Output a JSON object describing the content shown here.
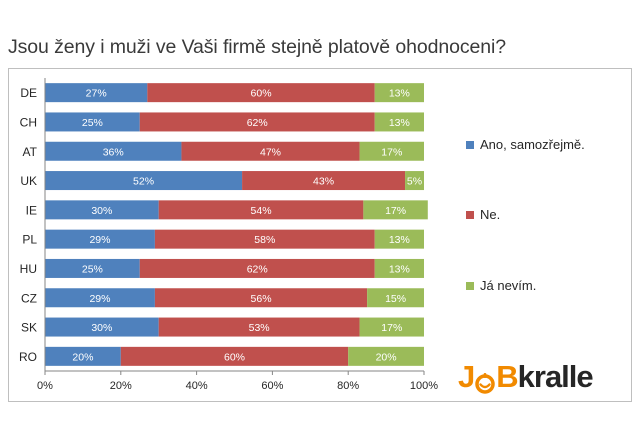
{
  "title": "Jsou ženy i muži ve Vaši firmě stejně platově ohodnoceni?",
  "logo": {
    "part1": "J",
    "part2": "B",
    "part3": "kralle",
    "o_icon": "smile-face-icon"
  },
  "colors": {
    "yes": "#4f81bd",
    "no": "#c0504d",
    "dontknow": "#9bbb59",
    "axis": "#868686"
  },
  "chart_data": {
    "type": "bar",
    "orientation": "horizontal",
    "stacked": true,
    "categories": [
      "DE",
      "CH",
      "AT",
      "UK",
      "IE",
      "PL",
      "HU",
      "CZ",
      "SK",
      "RO"
    ],
    "series": [
      {
        "name": "Ano, samozřejmě.",
        "color": "#4f81bd",
        "values": [
          27,
          25,
          36,
          52,
          30,
          29,
          25,
          29,
          30,
          20
        ]
      },
      {
        "name": "Ne.",
        "color": "#c0504d",
        "values": [
          60,
          62,
          47,
          43,
          54,
          58,
          62,
          56,
          53,
          60
        ]
      },
      {
        "name": "Já nevím.",
        "color": "#9bbb59",
        "values": [
          13,
          13,
          17,
          5,
          17,
          13,
          13,
          15,
          17,
          20
        ]
      }
    ],
    "xlim": [
      0,
      100
    ],
    "xticks": [
      "0%",
      "20%",
      "40%",
      "60%",
      "80%",
      "100%"
    ],
    "value_suffix": "%",
    "legend_position": "right",
    "grid": false
  }
}
